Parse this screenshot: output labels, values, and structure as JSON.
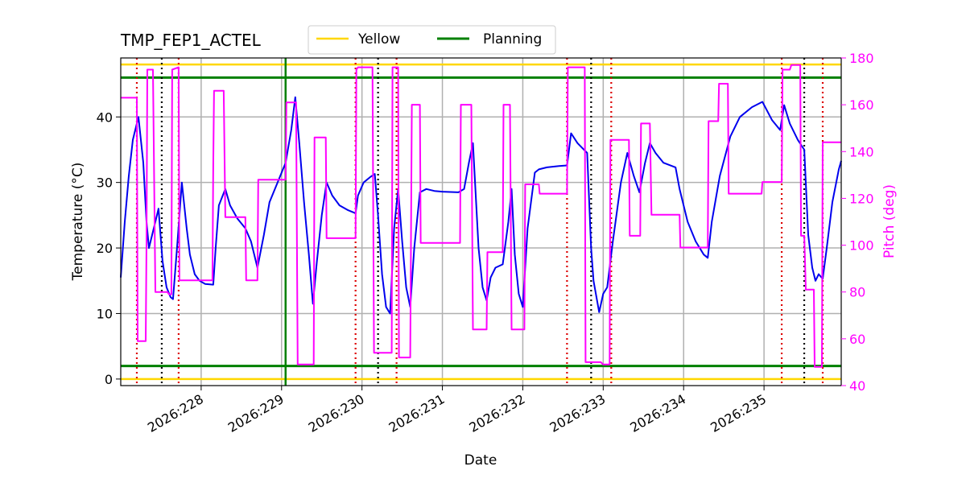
{
  "chart_data": {
    "type": "line",
    "title": "TMP_FEP1_ACTEL",
    "xlabel": "Date",
    "ylabel": "Temperature ($^\\circ$C)",
    "ylabel_display": "Temperature (°C)",
    "y2label": "Pitch (deg)",
    "x_unit": "day of year 2026",
    "xlim": [
      227.0,
      235.96
    ],
    "ylim": [
      -1,
      49
    ],
    "y2lim": [
      40,
      180
    ],
    "x_ticks": [
      228,
      229,
      230,
      231,
      232,
      233,
      234,
      235
    ],
    "x_tick_labels": [
      "2026:228",
      "2026:229",
      "2026:230",
      "2026:231",
      "2026:232",
      "2026:233",
      "2026:234",
      "2026:235"
    ],
    "y_ticks": [
      0,
      10,
      20,
      30,
      40
    ],
    "y2_ticks": [
      40,
      60,
      80,
      100,
      120,
      140,
      160,
      180
    ],
    "grid": true,
    "legend": {
      "placement": "top-center",
      "entries": [
        {
          "name": "Yellow",
          "color": "#ffd700"
        },
        {
          "name": "Planning",
          "color": "#008000"
        }
      ]
    },
    "limits": [
      {
        "name": "Yellow",
        "axis": "left",
        "values": [
          0,
          48
        ],
        "color": "#ffd700"
      },
      {
        "name": "Planning",
        "axis": "left",
        "values": [
          2,
          46
        ],
        "color": "#008000"
      }
    ],
    "planning_vline": {
      "x": 229.05,
      "color": "#008000"
    },
    "black_dotted_vlines": [
      227.51,
      230.2,
      232.85,
      235.5
    ],
    "red_dotted_vlines": [
      227.2,
      227.72,
      229.92,
      230.43,
      232.55,
      233.1,
      235.22,
      235.73
    ],
    "series": [
      {
        "name": "Temperature",
        "axis": "left",
        "color": "#0000ee",
        "points": [
          [
            227.0,
            15.5
          ],
          [
            227.05,
            24
          ],
          [
            227.1,
            31
          ],
          [
            227.15,
            36.5
          ],
          [
            227.22,
            40
          ],
          [
            227.28,
            33
          ],
          [
            227.32,
            24
          ],
          [
            227.35,
            20
          ],
          [
            227.42,
            23.5
          ],
          [
            227.47,
            26
          ],
          [
            227.52,
            18
          ],
          [
            227.57,
            14
          ],
          [
            227.62,
            12.5
          ],
          [
            227.65,
            12.2
          ],
          [
            227.7,
            20
          ],
          [
            227.76,
            30
          ],
          [
            227.82,
            23
          ],
          [
            227.86,
            19
          ],
          [
            227.92,
            16
          ],
          [
            227.98,
            15
          ],
          [
            228.05,
            14.5
          ],
          [
            228.15,
            14.4
          ],
          [
            228.18,
            20
          ],
          [
            228.22,
            26.5
          ],
          [
            228.3,
            29
          ],
          [
            228.36,
            26.5
          ],
          [
            228.45,
            24.5
          ],
          [
            228.55,
            23
          ],
          [
            228.62,
            21
          ],
          [
            228.7,
            17
          ],
          [
            228.78,
            22
          ],
          [
            228.85,
            27
          ],
          [
            228.95,
            30
          ],
          [
            229.05,
            33
          ],
          [
            229.12,
            38
          ],
          [
            229.17,
            43
          ],
          [
            229.22,
            36
          ],
          [
            229.28,
            27
          ],
          [
            229.34,
            19
          ],
          [
            229.39,
            11.5
          ],
          [
            229.44,
            18
          ],
          [
            229.5,
            25
          ],
          [
            229.56,
            30
          ],
          [
            229.63,
            28
          ],
          [
            229.72,
            26.5
          ],
          [
            229.82,
            25.8
          ],
          [
            229.92,
            25.3
          ],
          [
            229.95,
            28
          ],
          [
            230.02,
            30
          ],
          [
            230.1,
            30.8
          ],
          [
            230.16,
            31.3
          ],
          [
            230.2,
            25
          ],
          [
            230.25,
            16
          ],
          [
            230.3,
            11
          ],
          [
            230.35,
            10
          ],
          [
            230.4,
            23
          ],
          [
            230.45,
            29
          ],
          [
            230.5,
            21
          ],
          [
            230.55,
            14
          ],
          [
            230.6,
            11
          ],
          [
            230.65,
            20
          ],
          [
            230.72,
            28.5
          ],
          [
            230.8,
            29
          ],
          [
            230.9,
            28.7
          ],
          [
            231.0,
            28.6
          ],
          [
            231.2,
            28.5
          ],
          [
            231.27,
            29
          ],
          [
            231.33,
            33
          ],
          [
            231.38,
            36
          ],
          [
            231.45,
            20
          ],
          [
            231.5,
            14
          ],
          [
            231.55,
            12
          ],
          [
            231.6,
            15.5
          ],
          [
            231.66,
            17
          ],
          [
            231.75,
            17.5
          ],
          [
            231.82,
            24
          ],
          [
            231.86,
            29
          ],
          [
            231.9,
            19
          ],
          [
            231.95,
            13
          ],
          [
            232.0,
            11
          ],
          [
            232.06,
            23
          ],
          [
            232.15,
            31.5
          ],
          [
            232.2,
            32
          ],
          [
            232.3,
            32.3
          ],
          [
            232.45,
            32.5
          ],
          [
            232.55,
            32.6
          ],
          [
            232.6,
            37.5
          ],
          [
            232.68,
            36
          ],
          [
            232.8,
            34.5
          ],
          [
            232.85,
            20
          ],
          [
            232.88,
            15
          ],
          [
            232.95,
            10.2
          ],
          [
            233.0,
            13
          ],
          [
            233.05,
            14
          ],
          [
            233.12,
            21
          ],
          [
            233.22,
            30
          ],
          [
            233.3,
            34.5
          ],
          [
            233.38,
            31
          ],
          [
            233.45,
            28.5
          ],
          [
            233.52,
            33
          ],
          [
            233.58,
            36
          ],
          [
            233.65,
            34.5
          ],
          [
            233.75,
            33
          ],
          [
            233.9,
            32.3
          ],
          [
            233.95,
            29
          ],
          [
            234.05,
            24
          ],
          [
            234.15,
            21
          ],
          [
            234.25,
            19
          ],
          [
            234.3,
            18.5
          ],
          [
            234.35,
            24
          ],
          [
            234.45,
            31
          ],
          [
            234.58,
            37
          ],
          [
            234.7,
            40
          ],
          [
            234.85,
            41.5
          ],
          [
            234.98,
            42.3
          ],
          [
            235.1,
            39.5
          ],
          [
            235.2,
            38
          ],
          [
            235.25,
            41.8
          ],
          [
            235.32,
            39
          ],
          [
            235.42,
            36.5
          ],
          [
            235.5,
            35
          ],
          [
            235.55,
            22
          ],
          [
            235.6,
            17
          ],
          [
            235.64,
            15
          ],
          [
            235.68,
            16
          ],
          [
            235.73,
            15.3
          ],
          [
            235.78,
            20
          ],
          [
            235.85,
            27
          ],
          [
            235.93,
            32
          ],
          [
            235.96,
            33.3
          ]
        ]
      },
      {
        "name": "Pitch",
        "axis": "right",
        "color": "#ff00ff",
        "points": [
          [
            227.0,
            163
          ],
          [
            227.2,
            163
          ],
          [
            227.21,
            59
          ],
          [
            227.31,
            59
          ],
          [
            227.32,
            101
          ],
          [
            227.33,
            175
          ],
          [
            227.4,
            175
          ],
          [
            227.43,
            80
          ],
          [
            227.58,
            80
          ],
          [
            227.6,
            79
          ],
          [
            227.63,
            79
          ],
          [
            227.64,
            175
          ],
          [
            227.72,
            176
          ],
          [
            227.73,
            85
          ],
          [
            228.14,
            85
          ],
          [
            228.15,
            134
          ],
          [
            228.16,
            166
          ],
          [
            228.28,
            166
          ],
          [
            228.3,
            112
          ],
          [
            228.55,
            112
          ],
          [
            228.56,
            85
          ],
          [
            228.7,
            85
          ],
          [
            228.71,
            128
          ],
          [
            229.05,
            128
          ],
          [
            229.06,
            161
          ],
          [
            229.18,
            161
          ],
          [
            229.2,
            49
          ],
          [
            229.4,
            49
          ],
          [
            229.41,
            146
          ],
          [
            229.55,
            146
          ],
          [
            229.56,
            103
          ],
          [
            229.92,
            103
          ],
          [
            229.93,
            175
          ],
          [
            229.95,
            176
          ],
          [
            230.13,
            176
          ],
          [
            230.15,
            54
          ],
          [
            230.37,
            54
          ],
          [
            230.38,
            176
          ],
          [
            230.45,
            176
          ],
          [
            230.46,
            52
          ],
          [
            230.6,
            52
          ],
          [
            230.62,
            160
          ],
          [
            230.72,
            160
          ],
          [
            230.73,
            101
          ],
          [
            231.22,
            101
          ],
          [
            231.23,
            160
          ],
          [
            231.36,
            160
          ],
          [
            231.38,
            64
          ],
          [
            231.55,
            64
          ],
          [
            231.56,
            97
          ],
          [
            231.75,
            97
          ],
          [
            231.76,
            160
          ],
          [
            231.84,
            160
          ],
          [
            231.86,
            64
          ],
          [
            232.02,
            64
          ],
          [
            232.03,
            126
          ],
          [
            232.2,
            126
          ],
          [
            232.21,
            122
          ],
          [
            232.55,
            122
          ],
          [
            232.56,
            176
          ],
          [
            232.77,
            176
          ],
          [
            232.78,
            50
          ],
          [
            232.97,
            50
          ],
          [
            233.0,
            49
          ],
          [
            233.08,
            49
          ],
          [
            233.09,
            145
          ],
          [
            233.32,
            145
          ],
          [
            233.33,
            104
          ],
          [
            233.46,
            104
          ],
          [
            233.47,
            152
          ],
          [
            233.58,
            152
          ],
          [
            233.6,
            113
          ],
          [
            233.95,
            113
          ],
          [
            233.96,
            99
          ],
          [
            234.3,
            99
          ],
          [
            234.31,
            153
          ],
          [
            234.43,
            153
          ],
          [
            234.44,
            169
          ],
          [
            234.55,
            169
          ],
          [
            234.56,
            122
          ],
          [
            234.97,
            122
          ],
          [
            234.98,
            127
          ],
          [
            235.22,
            127
          ],
          [
            235.23,
            175
          ],
          [
            235.32,
            175
          ],
          [
            235.34,
            177
          ],
          [
            235.45,
            177
          ],
          [
            235.46,
            104
          ],
          [
            235.5,
            104
          ],
          [
            235.52,
            81
          ],
          [
            235.62,
            81
          ],
          [
            235.63,
            48
          ],
          [
            235.72,
            48
          ],
          [
            235.73,
            144
          ],
          [
            235.96,
            144
          ]
        ]
      }
    ]
  }
}
